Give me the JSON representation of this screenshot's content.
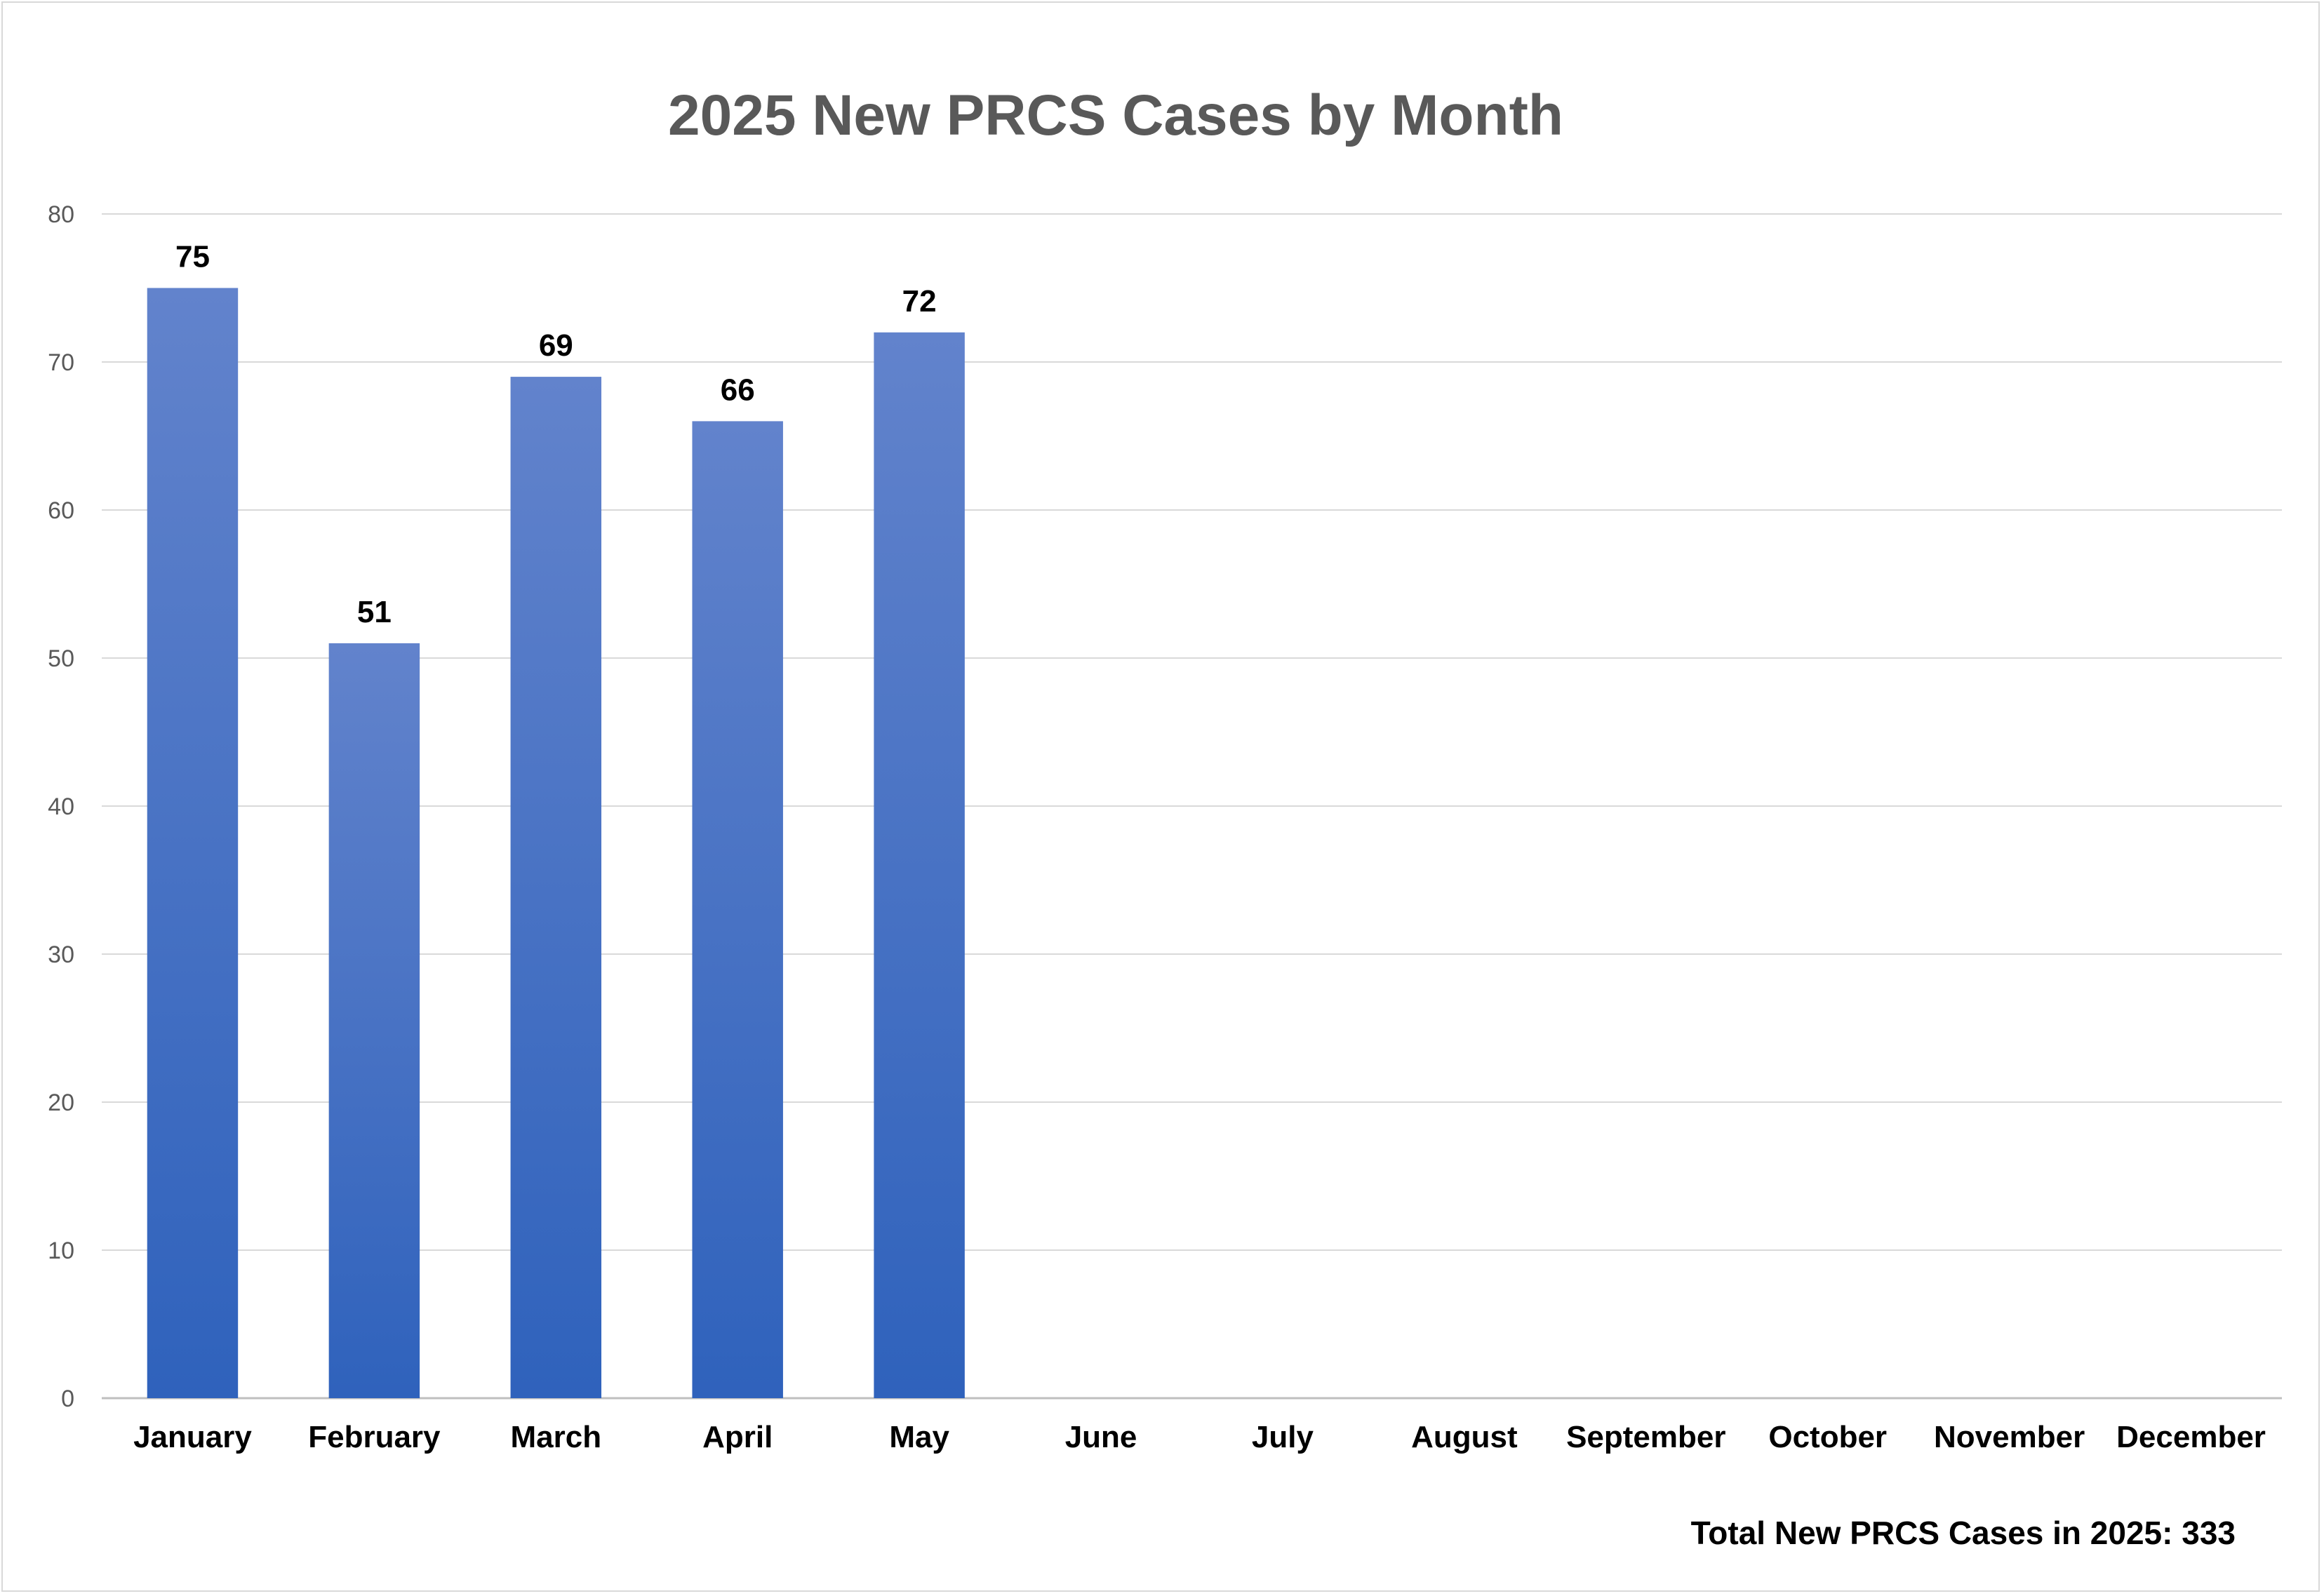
{
  "chart_data": {
    "type": "bar",
    "title": "2025 New PRCS Cases by Month",
    "categories": [
      "January",
      "February",
      "March",
      "April",
      "May",
      "June",
      "July",
      "August",
      "September",
      "October",
      "November",
      "December"
    ],
    "series": [
      {
        "values": [
          75,
          51,
          69,
          66,
          72,
          null,
          null,
          null,
          null,
          null,
          null,
          null
        ]
      }
    ],
    "ylim": [
      0,
      80
    ],
    "yticks": [
      0,
      10,
      20,
      30,
      40,
      50,
      60,
      70,
      80
    ],
    "grid": true,
    "legend": "none",
    "bar_color_top": "#6283cc",
    "bar_color_bottom": "#2f62bc"
  },
  "footnote": "Total New PRCS Cases in 2025: 333"
}
